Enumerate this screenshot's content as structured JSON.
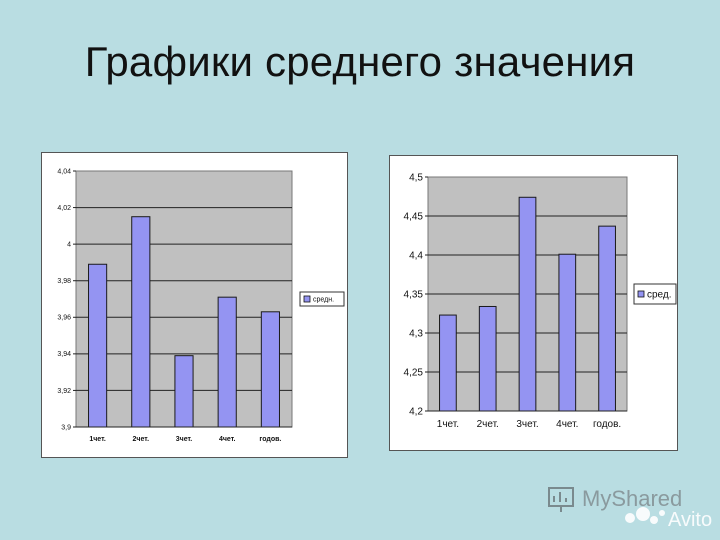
{
  "slide": {
    "title": "Графики среднего значения"
  },
  "chart_data": [
    {
      "type": "bar",
      "categories": [
        "1чет.",
        "2чет.",
        "3чет.",
        "4чет.",
        "годов."
      ],
      "series": [
        {
          "name": "средн.",
          "values": [
            3.989,
            4.015,
            3.939,
            3.971,
            3.963
          ]
        }
      ],
      "ylim": [
        3.9,
        4.04
      ],
      "yticks": [
        "3,9",
        "3,92",
        "3,94",
        "3,96",
        "3,98",
        "4",
        "4,02",
        "4,04"
      ],
      "grid": true,
      "legend": "right",
      "colors": {
        "bar": "#9494f2",
        "bar_edge": "#1a1a1a",
        "plot_bg": "#c0c0c0",
        "frame_bg": "#ffffff"
      }
    },
    {
      "type": "bar",
      "categories": [
        "1чет.",
        "2чет.",
        "3чет.",
        "4чет.",
        "годов."
      ],
      "series": [
        {
          "name": "сред.",
          "values": [
            4.323,
            4.334,
            4.474,
            4.401,
            4.437
          ]
        }
      ],
      "ylim": [
        4.2,
        4.5
      ],
      "yticks": [
        "4,2",
        "4,25",
        "4,3",
        "4,35",
        "4,4",
        "4,45",
        "4,5"
      ],
      "grid": true,
      "legend": "right",
      "colors": {
        "bar": "#9494f2",
        "bar_edge": "#1a1a1a",
        "plot_bg": "#c0c0c0",
        "frame_bg": "#ffffff"
      }
    }
  ],
  "watermark": {
    "text": "MyShared",
    "icon": "avito-logo-icon"
  }
}
